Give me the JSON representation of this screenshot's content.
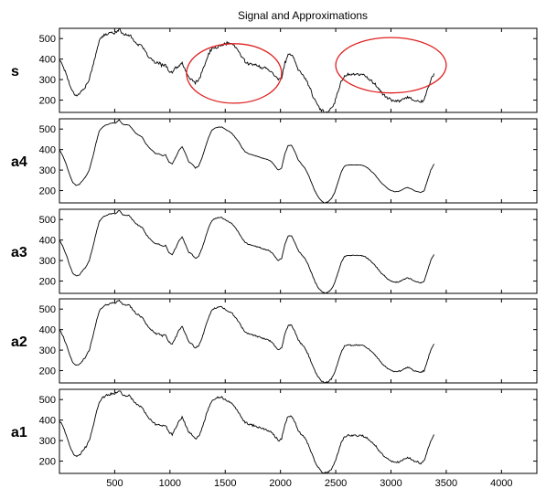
{
  "chart_data": {
    "type": "line",
    "title": "Signal and Approximations",
    "xlim": [
      0,
      4320
    ],
    "x_ticks": [
      500,
      1000,
      1500,
      2000,
      2500,
      3000,
      3500,
      4000
    ],
    "grid": false,
    "x_step": 30,
    "x_start": 0,
    "base_signal": [
      400,
      370,
      330,
      280,
      240,
      225,
      230,
      250,
      270,
      300,
      360,
      430,
      490,
      510,
      520,
      525,
      530,
      530,
      545,
      525,
      520,
      520,
      500,
      480,
      470,
      460,
      430,
      410,
      395,
      380,
      380,
      370,
      375,
      340,
      330,
      360,
      395,
      415,
      380,
      340,
      330,
      310,
      320,
      360,
      410,
      460,
      495,
      505,
      510,
      510,
      500,
      490,
      480,
      460,
      440,
      410,
      390,
      380,
      375,
      370,
      365,
      360,
      355,
      350,
      340,
      320,
      300,
      310,
      380,
      420,
      420,
      390,
      350,
      330,
      310,
      280,
      240,
      200,
      170,
      150,
      140,
      145,
      160,
      190,
      240,
      290,
      320,
      325,
      325,
      325,
      325,
      325,
      320,
      310,
      295,
      280,
      260,
      240,
      225,
      210,
      200,
      195,
      195,
      200,
      210,
      215,
      210,
      200,
      195,
      190,
      200,
      250,
      300,
      330
    ],
    "panels": [
      {
        "label": "s",
        "ylim": [
          140,
          550
        ],
        "yticks": [
          200,
          300,
          400,
          500
        ],
        "noise": 6,
        "offsets": [
          [
            36,
            -33
          ],
          [
            37,
            -34
          ],
          [
            38,
            -34
          ],
          [
            39,
            -33
          ],
          [
            40,
            -30
          ],
          [
            41,
            -25
          ],
          [
            42,
            -22
          ],
          [
            43,
            -25
          ],
          [
            44,
            -30
          ],
          [
            45,
            -35
          ],
          [
            46,
            -45
          ],
          [
            47,
            -50
          ],
          [
            48,
            -50
          ],
          [
            49,
            -42
          ],
          [
            50,
            -27
          ],
          [
            51,
            -11
          ],
          [
            52,
            -5
          ],
          [
            53,
            -1
          ]
        ]
      },
      {
        "label": "a4",
        "ylim": [
          140,
          550
        ],
        "yticks": [
          200,
          300,
          400,
          500
        ],
        "noise": 1,
        "offsets": []
      },
      {
        "label": "a3",
        "ylim": [
          140,
          550
        ],
        "yticks": [
          200,
          300,
          400,
          500
        ],
        "noise": 2,
        "offsets": []
      },
      {
        "label": "a2",
        "ylim": [
          140,
          550
        ],
        "yticks": [
          200,
          300,
          400,
          500
        ],
        "noise": 3,
        "offsets": []
      },
      {
        "label": "a1",
        "ylim": [
          140,
          550
        ],
        "yticks": [
          200,
          300,
          400,
          500
        ],
        "noise": 4,
        "offsets": []
      }
    ],
    "annotations": [
      {
        "type": "ellipse",
        "panel": 0,
        "cx": 1580,
        "cy": 330,
        "rx": 430,
        "ry": 145,
        "color": "#e02020"
      },
      {
        "type": "ellipse",
        "panel": 0,
        "cx": 3000,
        "cy": 370,
        "rx": 500,
        "ry": 135,
        "color": "#e02020"
      }
    ]
  }
}
